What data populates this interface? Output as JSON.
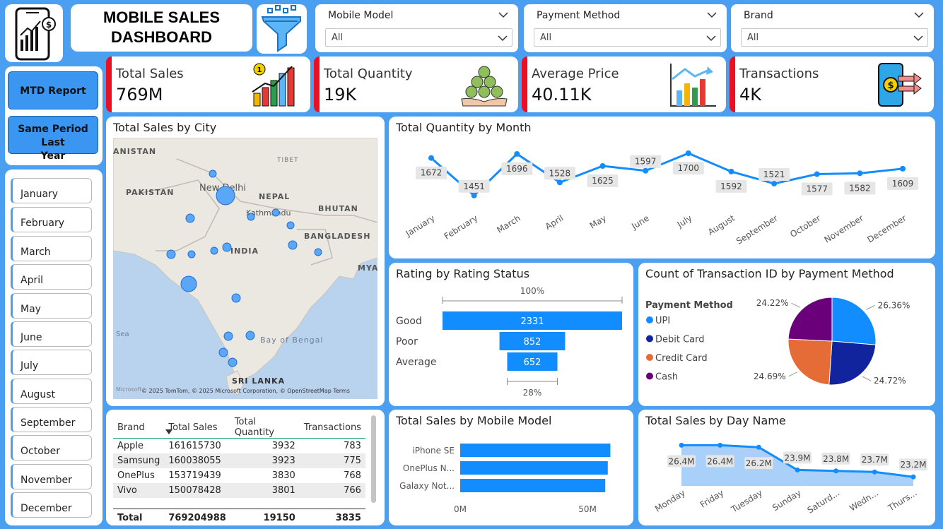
{
  "header": {
    "title_line1": "MOBILE SALES",
    "title_line2": "DASHBOARD"
  },
  "slicers": [
    {
      "label": "Mobile Model",
      "value": "All"
    },
    {
      "label": "Payment Method",
      "value": "All"
    },
    {
      "label": "Brand",
      "value": "All"
    }
  ],
  "kpis": [
    {
      "label": "Total Sales",
      "value": "769M"
    },
    {
      "label": "Total Quantity",
      "value": "19K"
    },
    {
      "label": "Average Price",
      "value": "40.11K"
    },
    {
      "label": "Transactions",
      "value": "4K"
    }
  ],
  "nav": {
    "mtd": "MTD Report",
    "same_period_line1": "Same Period Last",
    "same_period_line2": "Year"
  },
  "months": [
    "January",
    "February",
    "March",
    "April",
    "May",
    "June",
    "July",
    "August",
    "September",
    "October",
    "November",
    "December"
  ],
  "map": {
    "title": "Total Sales by City",
    "labels": {
      "afghanistan": "ANISTAN",
      "pakistan": "PAKISTAN",
      "tibet": "TIBET",
      "new_delhi": "New Delhi",
      "nepal": "NEPAL",
      "kathmandu": "Kathmandu",
      "bhutan": "BHUTAN",
      "bangladesh": "BANGLADESH",
      "india": "INDIA",
      "myanmar": "MYA",
      "sea": "Sea",
      "bay_of_bengal": "Bay of Bengal",
      "sri_lanka": "SRI LANKA"
    },
    "attribution": "© 2025 TomTom, © 2025 Microsoft Corporation, © OpenStreetMap  Terms",
    "brand_logo": "Microsoft"
  },
  "table": {
    "headers": [
      "Brand",
      "Total Sales",
      "Total Quantity",
      "Transactions"
    ],
    "rows": [
      [
        "Apple",
        "161615730",
        "3932",
        "783"
      ],
      [
        "Samsung",
        "160038055",
        "3923",
        "775"
      ],
      [
        "OnePlus",
        "153719439",
        "3830",
        "768"
      ],
      [
        "Vivo",
        "150078428",
        "3801",
        "766"
      ]
    ],
    "total": [
      "Total",
      "769204988",
      "19150",
      "3835"
    ]
  },
  "chart_data": [
    {
      "type": "line",
      "title": "Total Quantity by Month",
      "categories": [
        "January",
        "February",
        "March",
        "April",
        "May",
        "June",
        "July",
        "August",
        "September",
        "October",
        "November",
        "December"
      ],
      "values": [
        1672,
        1451,
        1696,
        1528,
        1625,
        1597,
        1700,
        1592,
        1521,
        1577,
        1582,
        1609
      ],
      "ylim": [
        1400,
        1750
      ],
      "color": "#118dff"
    },
    {
      "type": "bar",
      "title": "Rating by Rating Status",
      "subtype": "funnel",
      "categories": [
        "Good",
        "Poor",
        "Average"
      ],
      "values": [
        2331,
        852,
        652
      ],
      "top_label": "100%",
      "bottom_label": "28%",
      "color": "#118dff"
    },
    {
      "type": "pie",
      "title": "Count of Transaction ID by Payment Method",
      "legend_title": "Payment Method",
      "categories": [
        "UPI",
        "Debit Card",
        "Credit Card",
        "Cash"
      ],
      "values": [
        26.36,
        24.72,
        24.69,
        24.22
      ],
      "labels": [
        "26.36%",
        "24.72%",
        "24.69%",
        "24.22%"
      ],
      "colors": [
        "#118dff",
        "#12239e",
        "#e66c37",
        "#6b007b"
      ]
    },
    {
      "type": "bar",
      "title": "Total Sales by Mobile Model",
      "orientation": "horizontal",
      "categories": [
        "iPhone SE",
        "OnePlus N...",
        "Galaxy Not..."
      ],
      "values": [
        59,
        58,
        57
      ],
      "xticks": [
        "0M",
        "50M"
      ],
      "xlim": [
        0,
        65
      ],
      "color": "#118dff"
    },
    {
      "type": "area",
      "title": "Total Sales by Day Name",
      "categories": [
        "Monday",
        "Friday",
        "Tuesday",
        "Sunday",
        "Saturd...",
        "Wedn...",
        "Thurs..."
      ],
      "values": [
        26.4,
        26.4,
        26.2,
        23.9,
        23.8,
        23.7,
        23.2
      ],
      "labels": [
        "26.4M",
        "26.4M",
        "26.2M",
        "23.9M",
        "23.8M",
        "23.7M",
        "23.2M"
      ],
      "ylim": [
        22.5,
        27
      ],
      "color": "#118dff"
    }
  ]
}
